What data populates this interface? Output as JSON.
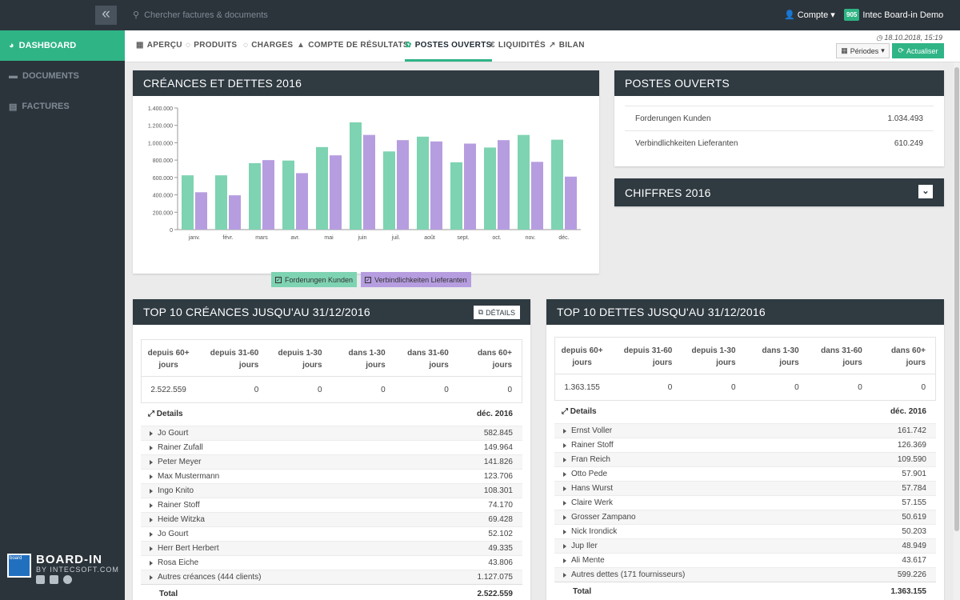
{
  "topbar": {
    "search_placeholder": "Chercher factures & documents",
    "account_label": "Compte",
    "logo_badge": "905",
    "app_name": "Intec Board-in Demo"
  },
  "sidebar": {
    "items": [
      {
        "label": "DASHBOARD",
        "icon": "pie-chart-icon"
      },
      {
        "label": "DOCUMENTS",
        "icon": "folder-icon"
      },
      {
        "label": "FACTURES",
        "icon": "file-icon"
      }
    ],
    "brand_logo_text": "board",
    "brand": "BOARD-IN",
    "brand_sub": "BY INTECSOFT.COM"
  },
  "tabs": [
    {
      "label": "APERÇU",
      "icon": "▦"
    },
    {
      "label": "PRODUITS",
      "icon": "◌"
    },
    {
      "label": "CHARGES",
      "icon": "◌"
    },
    {
      "label": "COMPTE DE RÉSULTATS",
      "icon": "▲"
    },
    {
      "label": "POSTES OUVERTS",
      "icon": "✿"
    },
    {
      "label": "LIQUIDITÉS",
      "icon": "€"
    },
    {
      "label": "BILAN",
      "icon": "↗"
    }
  ],
  "toolbar": {
    "stamp": "18.10.2018, 15:19",
    "periods": "Périodes",
    "refresh": "Actualiser"
  },
  "colors": {
    "green": "#7ed3b2",
    "purple": "#b69de0",
    "accent": "#2fb486"
  },
  "chart_panel": {
    "title": "CRÉANCES ET DETTES 2016"
  },
  "chart_data": {
    "type": "bar",
    "categories": [
      "janv.",
      "févr.",
      "mars",
      "avr.",
      "mai",
      "juin",
      "juil.",
      "août",
      "sept.",
      "oct.",
      "nov.",
      "déc."
    ],
    "series": [
      {
        "name": "Forderungen Kunden",
        "values": [
          625000,
          625000,
          765000,
          795000,
          950000,
          1235000,
          900000,
          1070000,
          775000,
          945000,
          1090000,
          1035000
        ]
      },
      {
        "name": "Verbindlichkeiten Lieferanten",
        "values": [
          430000,
          395000,
          800000,
          650000,
          855000,
          1090000,
          1030000,
          1015000,
          990000,
          1030000,
          780000,
          610000
        ]
      }
    ],
    "ylim": [
      0,
      1400000
    ],
    "yticks": [
      "0",
      "200.000",
      "400.000",
      "600.000",
      "800.000",
      "1.000.000",
      "1.200.000",
      "1.400.000"
    ],
    "legend": "bottom"
  },
  "open_items": {
    "title": "POSTES OUVERTS",
    "rows": [
      {
        "label": "Forderungen Kunden",
        "value": "1.034.493"
      },
      {
        "label": "Verbindlichkeiten Lieferanten",
        "value": "610.249"
      }
    ]
  },
  "figures": {
    "title": "CHIFFRES 2016"
  },
  "receivables": {
    "title": "TOP 10 CRÉANCES JUSQU'AU 31/12/2016",
    "details_button": "DÉTAILS",
    "age_headers": [
      "depuis 60+ jours",
      "depuis 31-60 jours",
      "depuis 1-30 jours",
      "dans 1-30 jours",
      "dans 31-60 jours",
      "dans 60+ jours"
    ],
    "age_values": [
      "2.522.559",
      "0",
      "0",
      "0",
      "0",
      "0"
    ],
    "details_label": "Details",
    "period": "déc. 2016",
    "rows": [
      {
        "n": "Jo Gourt",
        "v": "582.845"
      },
      {
        "n": "Rainer Zufall",
        "v": "149.964"
      },
      {
        "n": "Peter Meyer",
        "v": "141.826"
      },
      {
        "n": "Max Mustermann",
        "v": "123.706"
      },
      {
        "n": "Ingo Knito",
        "v": "108.301"
      },
      {
        "n": "Rainer Stoff",
        "v": "74.170"
      },
      {
        "n": "Heide Witzka",
        "v": "69.428"
      },
      {
        "n": "Jo Gourt",
        "v": "52.102"
      },
      {
        "n": "Herr Bert Herbert",
        "v": "49.335"
      },
      {
        "n": "Rosa Eiche",
        "v": "43.806"
      },
      {
        "n": "Autres créances (444 clients)",
        "v": "1.127.075"
      }
    ],
    "total_label": "Total",
    "total": "2.522.559"
  },
  "payables": {
    "title": "TOP 10 DETTES JUSQU'AU 31/12/2016",
    "age_headers": [
      "depuis 60+ jours",
      "depuis 31-60 jours",
      "depuis 1-30 jours",
      "dans 1-30 jours",
      "dans 31-60 jours",
      "dans 60+ jours"
    ],
    "age_values": [
      "1.363.155",
      "0",
      "0",
      "0",
      "0",
      "0"
    ],
    "details_label": "Details",
    "period": "déc. 2016",
    "rows": [
      {
        "n": "Ernst Voller",
        "v": "161.742"
      },
      {
        "n": "Rainer Stoff",
        "v": "126.369"
      },
      {
        "n": "Fran Reich",
        "v": "109.590"
      },
      {
        "n": "Otto Pede",
        "v": "57.901"
      },
      {
        "n": "Hans Wurst",
        "v": "57.784"
      },
      {
        "n": "Claire Werk",
        "v": "57.155"
      },
      {
        "n": "Grosser Zampano",
        "v": "50.619"
      },
      {
        "n": "Nick Irondick",
        "v": "50.203"
      },
      {
        "n": "Jup Iler",
        "v": "48.949"
      },
      {
        "n": "Ali Mente",
        "v": "43.617"
      },
      {
        "n": "Autres dettes (171 fournisseurs)",
        "v": "599.226"
      }
    ],
    "total_label": "Total",
    "total": "1.363.155"
  }
}
